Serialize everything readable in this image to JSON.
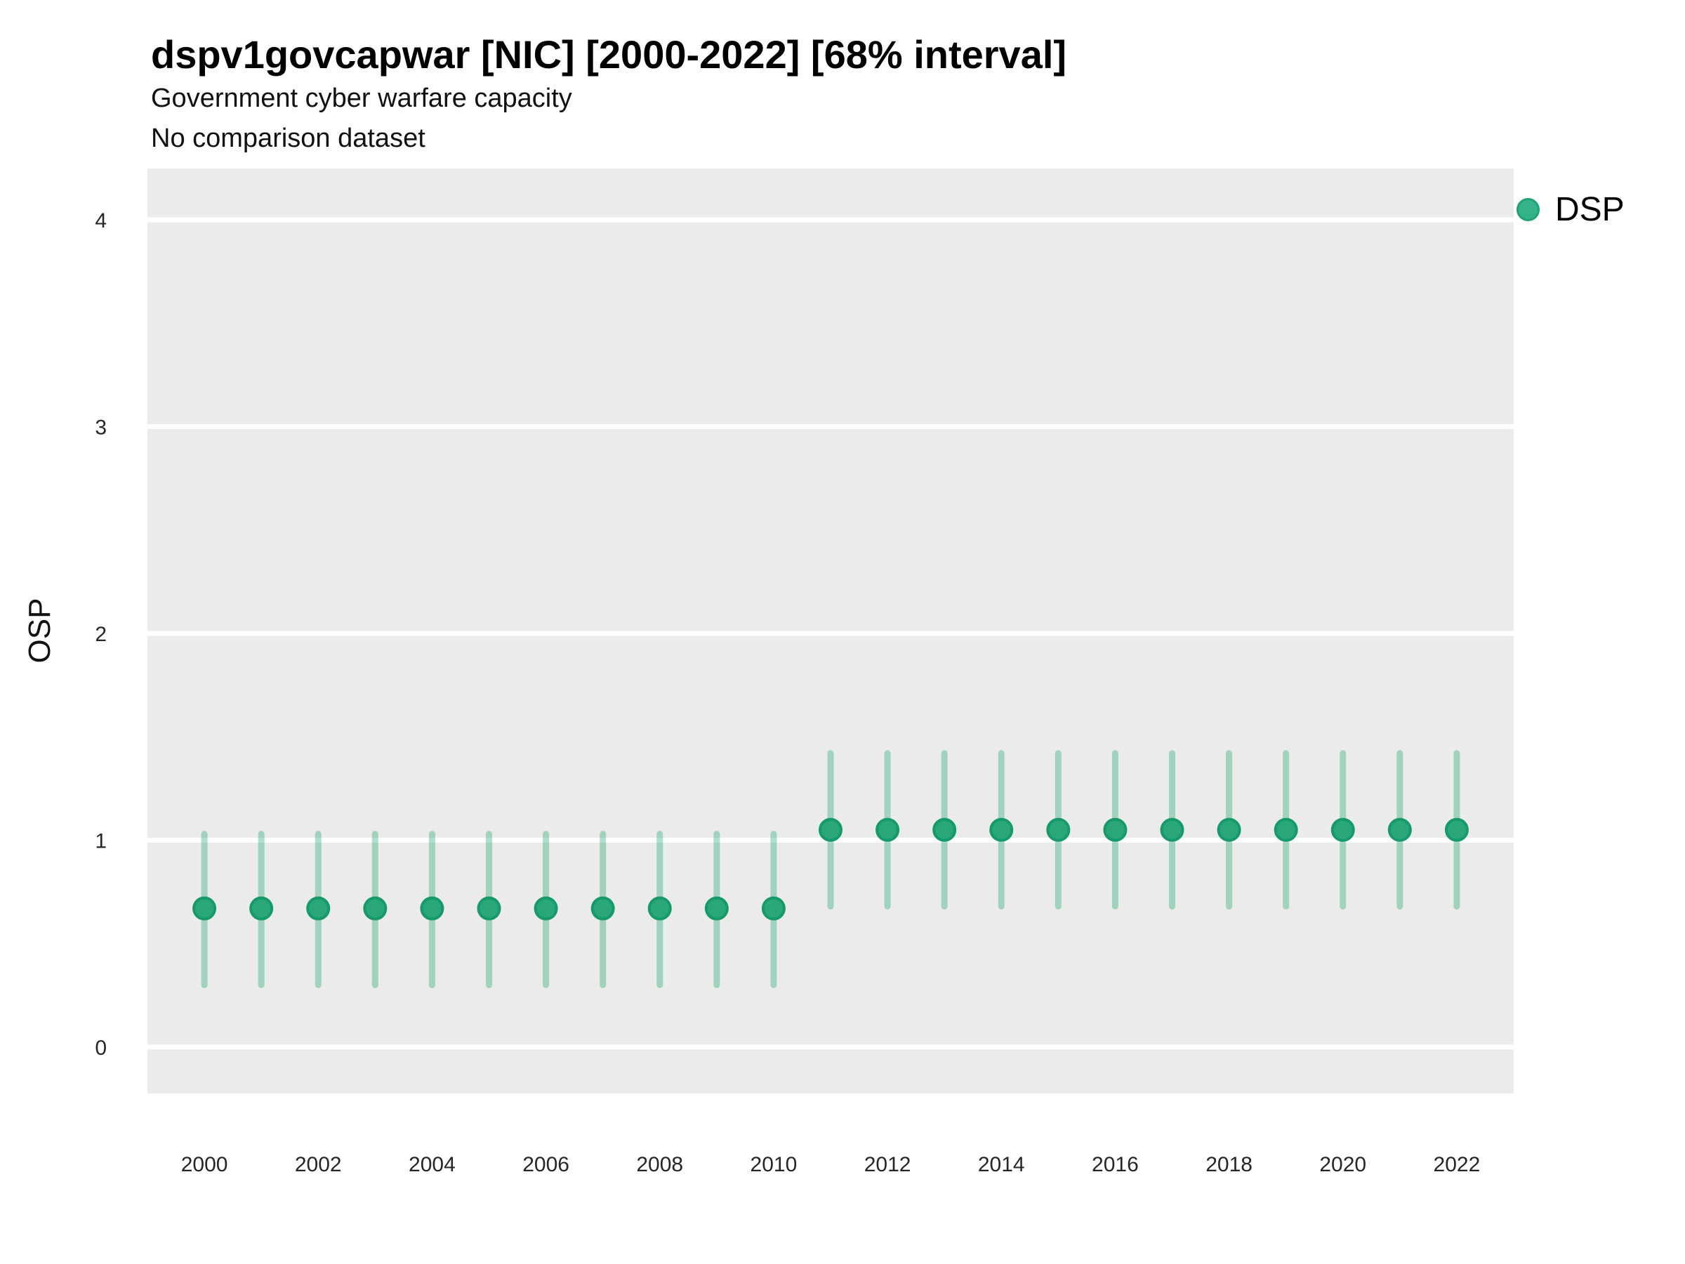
{
  "header": {
    "title": "dspv1govcapwar [NIC] [2000-2022] [68% interval]",
    "subtitle1": "Government cyber warfare capacity",
    "subtitle2": "No comparison dataset"
  },
  "legend": {
    "label": "DSP",
    "dot_fill": "#34b38a",
    "dot_stroke": "#21a273"
  },
  "colors": {
    "panel_bg": "#ebebeb",
    "gridline": "#ffffff",
    "point_fill": "#29a77a",
    "point_stroke": "#179a6b",
    "interval_color": "#29a77a",
    "interval_opacity": 0.38,
    "tick_text": "#262626"
  },
  "chart_data": {
    "type": "pointrange",
    "title": "dspv1govcapwar [NIC] [2000-2022] [68% interval]",
    "subtitle": [
      "Government cyber warfare capacity",
      "No comparison dataset"
    ],
    "xlabel": "",
    "ylabel": "OSP",
    "interval": "68%",
    "ylim": [
      0,
      4
    ],
    "xlim": [
      1999,
      2023
    ],
    "y_ticks": [
      0,
      1,
      2,
      3,
      4
    ],
    "x_ticks": [
      2000,
      2002,
      2004,
      2006,
      2008,
      2010,
      2012,
      2014,
      2016,
      2018,
      2020,
      2022
    ],
    "grid": "horizontal-major-only",
    "legend_position": "right-top",
    "series": [
      {
        "name": "DSP",
        "points": [
          {
            "x": 2000,
            "y": 0.67,
            "ymin": 0.3,
            "ymax": 1.03
          },
          {
            "x": 2001,
            "y": 0.67,
            "ymin": 0.3,
            "ymax": 1.03
          },
          {
            "x": 2002,
            "y": 0.67,
            "ymin": 0.3,
            "ymax": 1.03
          },
          {
            "x": 2003,
            "y": 0.67,
            "ymin": 0.3,
            "ymax": 1.03
          },
          {
            "x": 2004,
            "y": 0.67,
            "ymin": 0.3,
            "ymax": 1.03
          },
          {
            "x": 2005,
            "y": 0.67,
            "ymin": 0.3,
            "ymax": 1.03
          },
          {
            "x": 2006,
            "y": 0.67,
            "ymin": 0.3,
            "ymax": 1.03
          },
          {
            "x": 2007,
            "y": 0.67,
            "ymin": 0.3,
            "ymax": 1.03
          },
          {
            "x": 2008,
            "y": 0.67,
            "ymin": 0.3,
            "ymax": 1.03
          },
          {
            "x": 2009,
            "y": 0.67,
            "ymin": 0.3,
            "ymax": 1.03
          },
          {
            "x": 2010,
            "y": 0.67,
            "ymin": 0.3,
            "ymax": 1.03
          },
          {
            "x": 2011,
            "y": 1.05,
            "ymin": 0.68,
            "ymax": 1.42
          },
          {
            "x": 2012,
            "y": 1.05,
            "ymin": 0.68,
            "ymax": 1.42
          },
          {
            "x": 2013,
            "y": 1.05,
            "ymin": 0.68,
            "ymax": 1.42
          },
          {
            "x": 2014,
            "y": 1.05,
            "ymin": 0.68,
            "ymax": 1.42
          },
          {
            "x": 2015,
            "y": 1.05,
            "ymin": 0.68,
            "ymax": 1.42
          },
          {
            "x": 2016,
            "y": 1.05,
            "ymin": 0.68,
            "ymax": 1.42
          },
          {
            "x": 2017,
            "y": 1.05,
            "ymin": 0.68,
            "ymax": 1.42
          },
          {
            "x": 2018,
            "y": 1.05,
            "ymin": 0.68,
            "ymax": 1.42
          },
          {
            "x": 2019,
            "y": 1.05,
            "ymin": 0.68,
            "ymax": 1.42
          },
          {
            "x": 2020,
            "y": 1.05,
            "ymin": 0.68,
            "ymax": 1.42
          },
          {
            "x": 2021,
            "y": 1.05,
            "ymin": 0.68,
            "ymax": 1.42
          },
          {
            "x": 2022,
            "y": 1.05,
            "ymin": 0.68,
            "ymax": 1.42
          }
        ]
      }
    ]
  }
}
